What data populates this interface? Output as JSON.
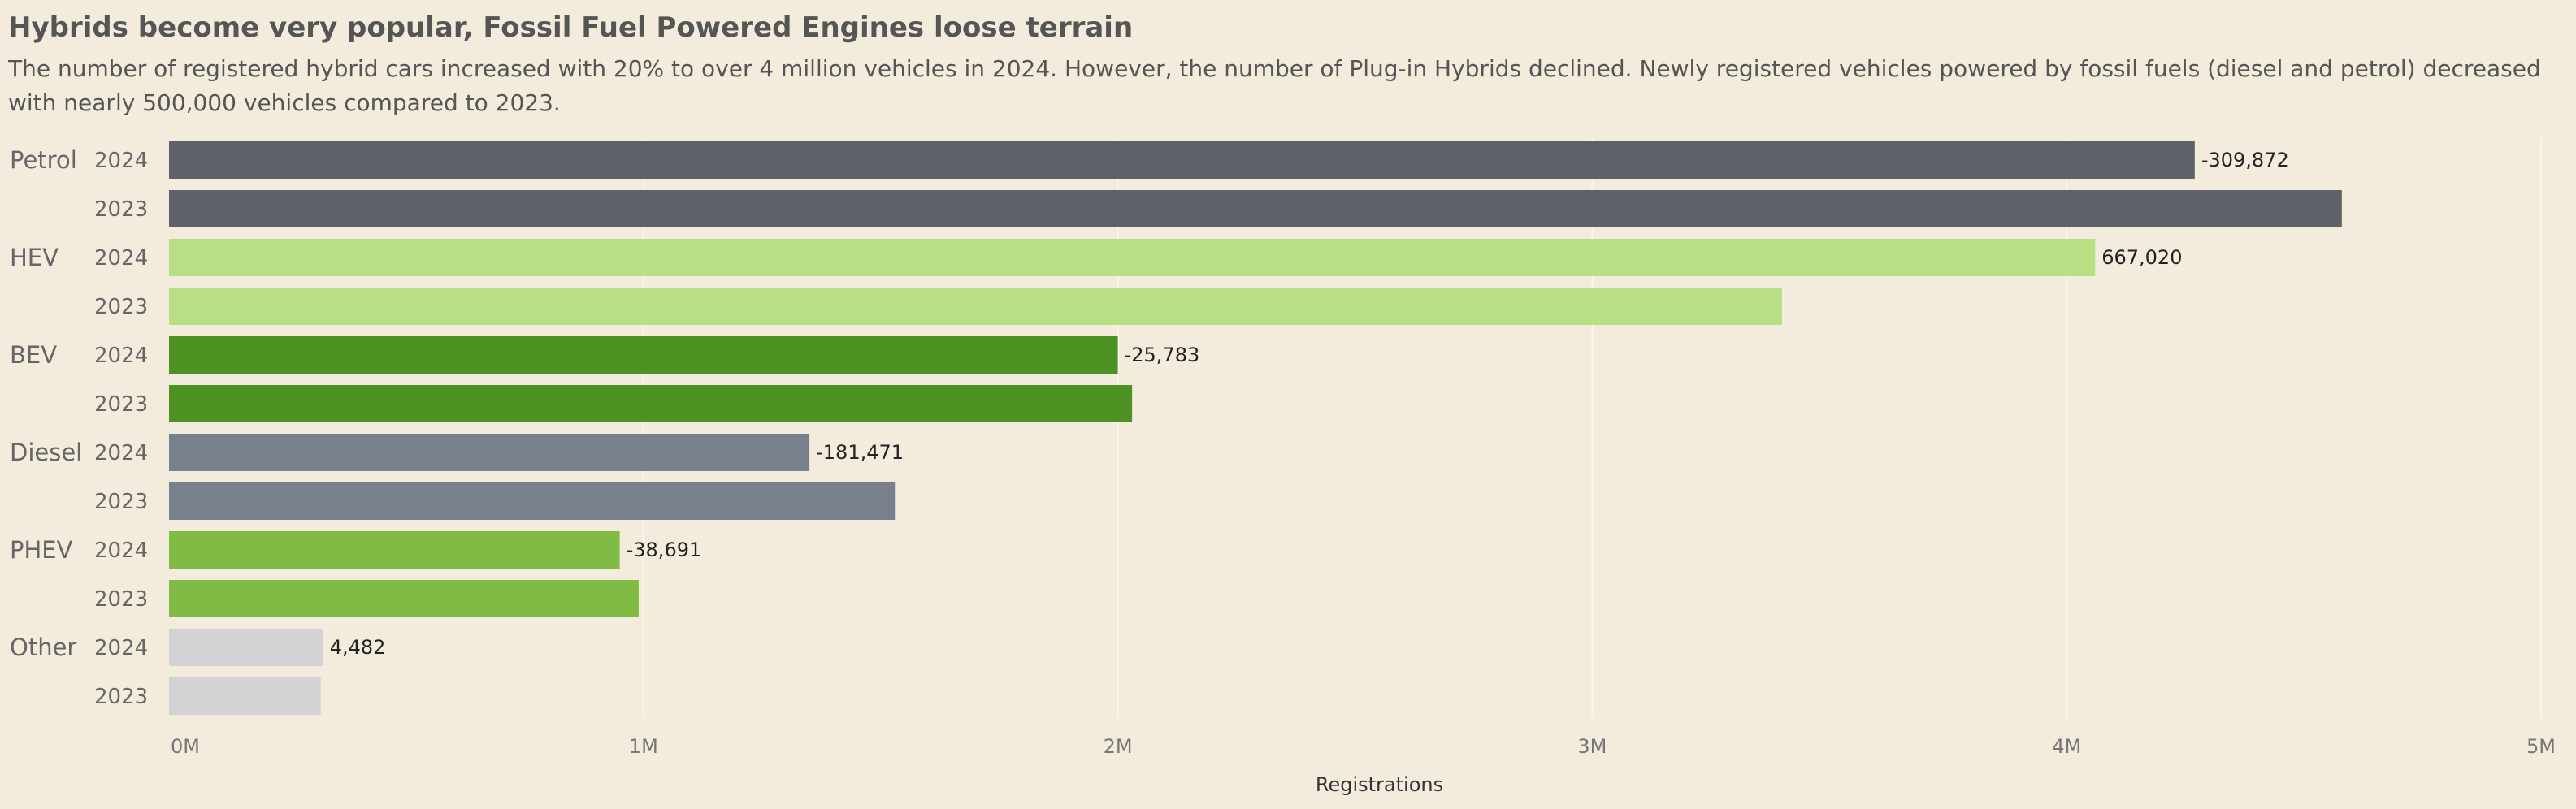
{
  "title": "Hybrids become very popular, Fossil Fuel Powered Engines loose terrain",
  "subtitle": "The number of registered hybrid cars increased with 20% to over 4 million vehicles in 2024. However, the number of Plug-in Hybrids declined. Newly registered vehicles powered by fossil fuels (diesel and petrol) decreased with nearly 500,000 vehicles compared to 2023.",
  "chart_data": {
    "type": "bar",
    "orientation": "horizontal",
    "xlabel": "Registrations",
    "xlim": [
      0,
      5000000
    ],
    "ticks": [
      {
        "value": 0,
        "label": "0M"
      },
      {
        "value": 1000000,
        "label": "1M"
      },
      {
        "value": 2000000,
        "label": "2M"
      },
      {
        "value": 3000000,
        "label": "3M"
      },
      {
        "value": 4000000,
        "label": "4M"
      },
      {
        "value": 5000000,
        "label": "5M"
      }
    ],
    "grid": true,
    "groups": [
      {
        "category": "Petrol",
        "color": "#5d6169",
        "bars": [
          {
            "year": "2024",
            "value": 4270000,
            "label": "-309,872"
          },
          {
            "year": "2023",
            "value": 4580000,
            "label": ""
          }
        ]
      },
      {
        "category": "HEV",
        "color": "#b7e085",
        "bars": [
          {
            "year": "2024",
            "value": 4060000,
            "label": "667,020"
          },
          {
            "year": "2023",
            "value": 3400000,
            "label": ""
          }
        ]
      },
      {
        "category": "BEV",
        "color": "#4c9121",
        "bars": [
          {
            "year": "2024",
            "value": 2000000,
            "label": "-25,783"
          },
          {
            "year": "2023",
            "value": 2030000,
            "label": ""
          }
        ]
      },
      {
        "category": "Diesel",
        "color": "#79808d",
        "bars": [
          {
            "year": "2024",
            "value": 1350000,
            "label": "-181,471"
          },
          {
            "year": "2023",
            "value": 1530000,
            "label": ""
          }
        ]
      },
      {
        "category": "PHEV",
        "color": "#80bc45",
        "bars": [
          {
            "year": "2024",
            "value": 950000,
            "label": "-38,691"
          },
          {
            "year": "2023",
            "value": 990000,
            "label": ""
          }
        ]
      },
      {
        "category": "Other",
        "color": "#d3d3d3",
        "bars": [
          {
            "year": "2024",
            "value": 325000,
            "label": "4,482"
          },
          {
            "year": "2023",
            "value": 320000,
            "label": ""
          }
        ]
      }
    ]
  }
}
